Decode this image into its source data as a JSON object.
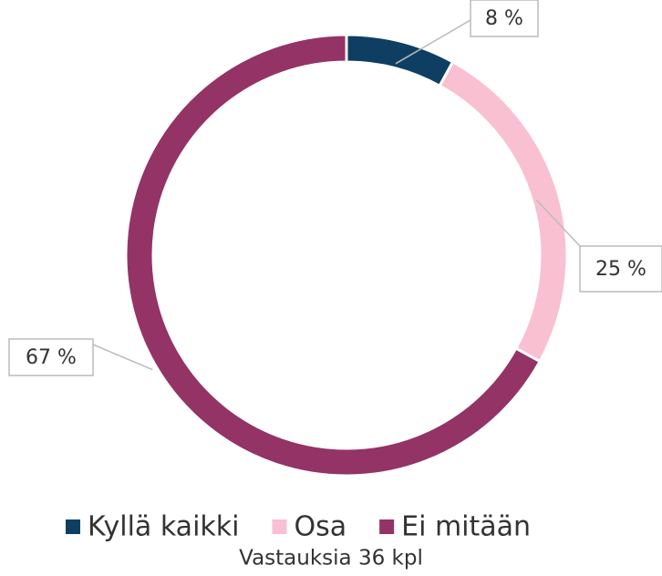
{
  "chart_data": {
    "type": "donut",
    "categories": [
      "Kyllä kaikki",
      "Osa",
      "Ei mitään"
    ],
    "values": [
      8,
      25,
      67
    ],
    "value_labels": [
      "8 %",
      "25 %",
      "67 %"
    ],
    "colors": [
      "#0e3f62",
      "#f9c0d2",
      "#933366"
    ],
    "subtitle": "Vastauksia 36 kpl",
    "legend": "bottom"
  }
}
